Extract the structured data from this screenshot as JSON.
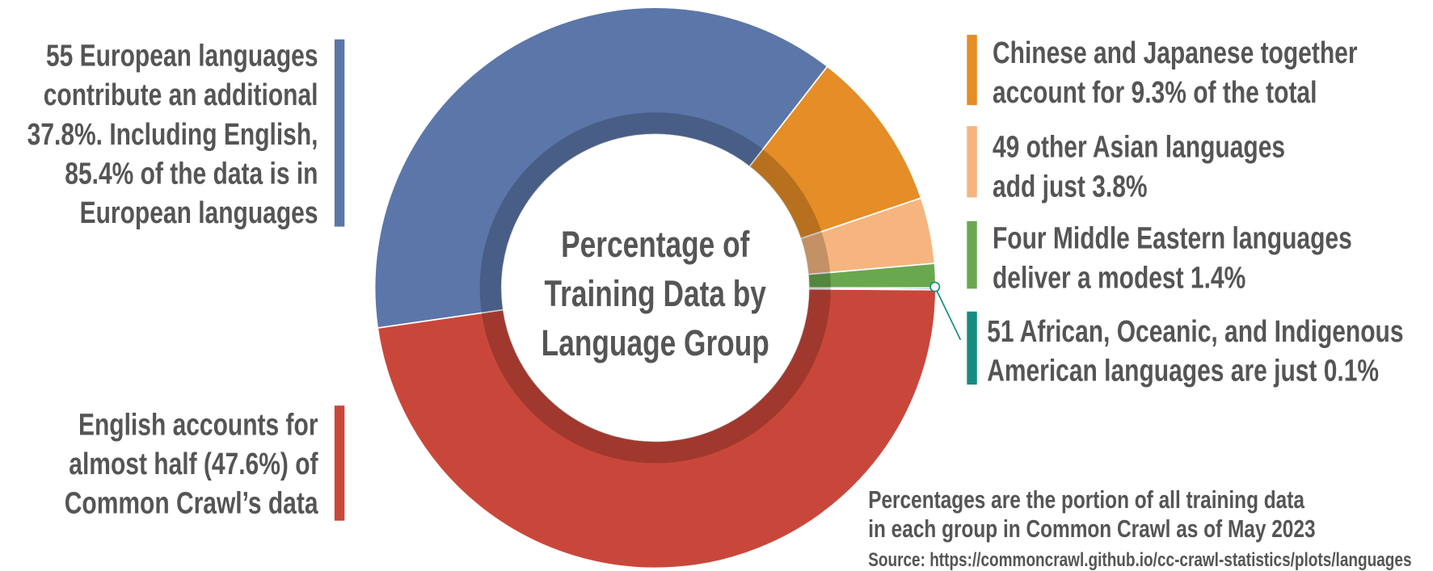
{
  "chart_data": {
    "type": "pie",
    "donut": true,
    "title": [
      "Percentage of",
      "Training Data by",
      "Language Group"
    ],
    "values": [
      47.6,
      37.8,
      9.3,
      3.8,
      1.4,
      0.1
    ],
    "colors": [
      "#c9473a",
      "#5b76a8",
      "#e58d26",
      "#f6b57f",
      "#6aa84f",
      "#168c7f"
    ],
    "annotations": [
      [
        "English accounts for",
        "almost half (47.6%) of",
        "Common Crawl’s data"
      ],
      [
        "55 European languages",
        "contribute an additional",
        "37.8%. Including English,",
        "85.4% of the data is in",
        "European languages"
      ],
      [
        "Chinese and Japanese together",
        "account for 9.3% of the total"
      ],
      [
        "49 other Asian languages",
        "add just 3.8%"
      ],
      [
        "Four Middle Eastern languages",
        "deliver a modest 1.4%"
      ],
      [
        "51 African, Oceanic, and Indigenous",
        "American languages are just 0.1%"
      ]
    ],
    "notes": [
      "Percentages are the portion of all training data",
      "in each group in Common Crawl as of May 2023"
    ],
    "source": "Source: https://commoncrawl.github.io/cc-crawl-statistics/plots/languages"
  }
}
